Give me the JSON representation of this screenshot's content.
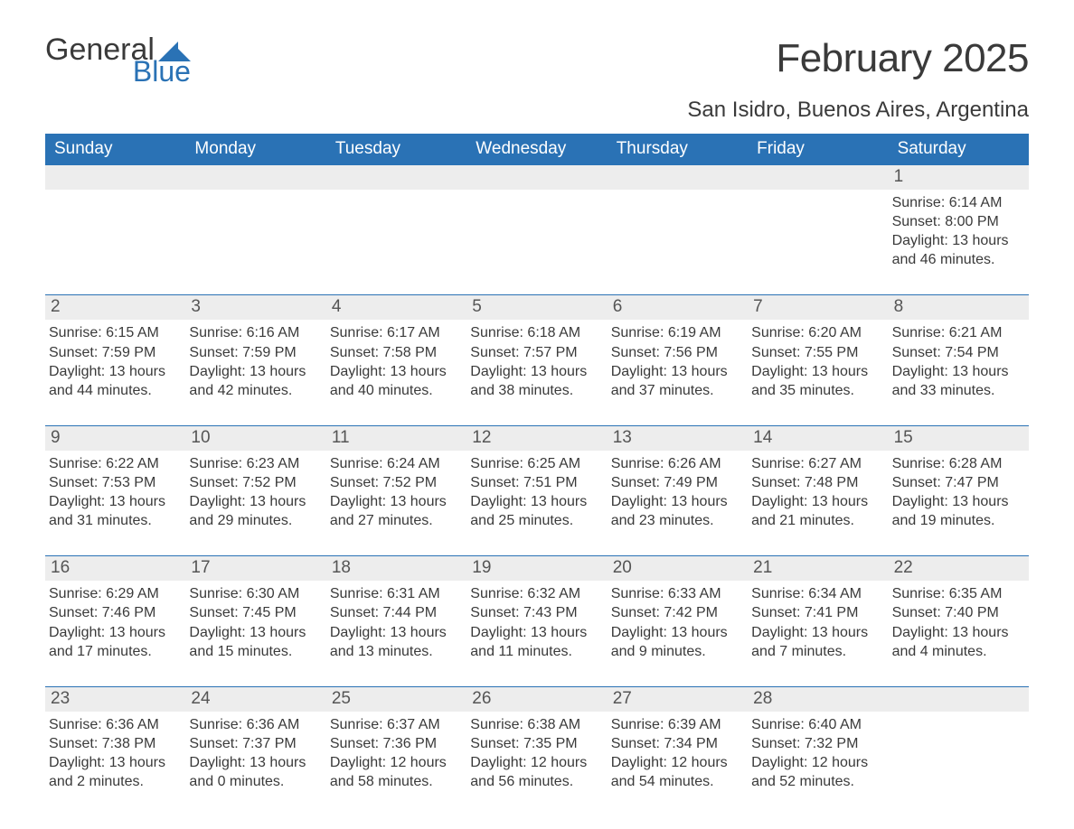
{
  "logo": {
    "word1": "General",
    "word2": "Blue",
    "mark_color": "#2a72b5",
    "text_color": "#3a3a3a"
  },
  "title": "February 2025",
  "location": "San Isidro, Buenos Aires, Argentina",
  "colors": {
    "header_bg": "#2a72b5",
    "header_text": "#ffffff",
    "daynum_bg": "#ededed",
    "daynum_text": "#555555",
    "rule": "#2a72b5",
    "body_text": "#3a3a3a",
    "page_bg": "#ffffff"
  },
  "daynames": [
    "Sunday",
    "Monday",
    "Tuesday",
    "Wednesday",
    "Thursday",
    "Friday",
    "Saturday"
  ],
  "weeks": [
    [
      {
        "empty": true
      },
      {
        "empty": true
      },
      {
        "empty": true
      },
      {
        "empty": true
      },
      {
        "empty": true
      },
      {
        "empty": true
      },
      {
        "n": "1",
        "sunrise": "Sunrise: 6:14 AM",
        "sunset": "Sunset: 8:00 PM",
        "daylight1": "Daylight: 13 hours",
        "daylight2": "and 46 minutes."
      }
    ],
    [
      {
        "n": "2",
        "sunrise": "Sunrise: 6:15 AM",
        "sunset": "Sunset: 7:59 PM",
        "daylight1": "Daylight: 13 hours",
        "daylight2": "and 44 minutes."
      },
      {
        "n": "3",
        "sunrise": "Sunrise: 6:16 AM",
        "sunset": "Sunset: 7:59 PM",
        "daylight1": "Daylight: 13 hours",
        "daylight2": "and 42 minutes."
      },
      {
        "n": "4",
        "sunrise": "Sunrise: 6:17 AM",
        "sunset": "Sunset: 7:58 PM",
        "daylight1": "Daylight: 13 hours",
        "daylight2": "and 40 minutes."
      },
      {
        "n": "5",
        "sunrise": "Sunrise: 6:18 AM",
        "sunset": "Sunset: 7:57 PM",
        "daylight1": "Daylight: 13 hours",
        "daylight2": "and 38 minutes."
      },
      {
        "n": "6",
        "sunrise": "Sunrise: 6:19 AM",
        "sunset": "Sunset: 7:56 PM",
        "daylight1": "Daylight: 13 hours",
        "daylight2": "and 37 minutes."
      },
      {
        "n": "7",
        "sunrise": "Sunrise: 6:20 AM",
        "sunset": "Sunset: 7:55 PM",
        "daylight1": "Daylight: 13 hours",
        "daylight2": "and 35 minutes."
      },
      {
        "n": "8",
        "sunrise": "Sunrise: 6:21 AM",
        "sunset": "Sunset: 7:54 PM",
        "daylight1": "Daylight: 13 hours",
        "daylight2": "and 33 minutes."
      }
    ],
    [
      {
        "n": "9",
        "sunrise": "Sunrise: 6:22 AM",
        "sunset": "Sunset: 7:53 PM",
        "daylight1": "Daylight: 13 hours",
        "daylight2": "and 31 minutes."
      },
      {
        "n": "10",
        "sunrise": "Sunrise: 6:23 AM",
        "sunset": "Sunset: 7:52 PM",
        "daylight1": "Daylight: 13 hours",
        "daylight2": "and 29 minutes."
      },
      {
        "n": "11",
        "sunrise": "Sunrise: 6:24 AM",
        "sunset": "Sunset: 7:52 PM",
        "daylight1": "Daylight: 13 hours",
        "daylight2": "and 27 minutes."
      },
      {
        "n": "12",
        "sunrise": "Sunrise: 6:25 AM",
        "sunset": "Sunset: 7:51 PM",
        "daylight1": "Daylight: 13 hours",
        "daylight2": "and 25 minutes."
      },
      {
        "n": "13",
        "sunrise": "Sunrise: 6:26 AM",
        "sunset": "Sunset: 7:49 PM",
        "daylight1": "Daylight: 13 hours",
        "daylight2": "and 23 minutes."
      },
      {
        "n": "14",
        "sunrise": "Sunrise: 6:27 AM",
        "sunset": "Sunset: 7:48 PM",
        "daylight1": "Daylight: 13 hours",
        "daylight2": "and 21 minutes."
      },
      {
        "n": "15",
        "sunrise": "Sunrise: 6:28 AM",
        "sunset": "Sunset: 7:47 PM",
        "daylight1": "Daylight: 13 hours",
        "daylight2": "and 19 minutes."
      }
    ],
    [
      {
        "n": "16",
        "sunrise": "Sunrise: 6:29 AM",
        "sunset": "Sunset: 7:46 PM",
        "daylight1": "Daylight: 13 hours",
        "daylight2": "and 17 minutes."
      },
      {
        "n": "17",
        "sunrise": "Sunrise: 6:30 AM",
        "sunset": "Sunset: 7:45 PM",
        "daylight1": "Daylight: 13 hours",
        "daylight2": "and 15 minutes."
      },
      {
        "n": "18",
        "sunrise": "Sunrise: 6:31 AM",
        "sunset": "Sunset: 7:44 PM",
        "daylight1": "Daylight: 13 hours",
        "daylight2": "and 13 minutes."
      },
      {
        "n": "19",
        "sunrise": "Sunrise: 6:32 AM",
        "sunset": "Sunset: 7:43 PM",
        "daylight1": "Daylight: 13 hours",
        "daylight2": "and 11 minutes."
      },
      {
        "n": "20",
        "sunrise": "Sunrise: 6:33 AM",
        "sunset": "Sunset: 7:42 PM",
        "daylight1": "Daylight: 13 hours",
        "daylight2": "and 9 minutes."
      },
      {
        "n": "21",
        "sunrise": "Sunrise: 6:34 AM",
        "sunset": "Sunset: 7:41 PM",
        "daylight1": "Daylight: 13 hours",
        "daylight2": "and 7 minutes."
      },
      {
        "n": "22",
        "sunrise": "Sunrise: 6:35 AM",
        "sunset": "Sunset: 7:40 PM",
        "daylight1": "Daylight: 13 hours",
        "daylight2": "and 4 minutes."
      }
    ],
    [
      {
        "n": "23",
        "sunrise": "Sunrise: 6:36 AM",
        "sunset": "Sunset: 7:38 PM",
        "daylight1": "Daylight: 13 hours",
        "daylight2": "and 2 minutes."
      },
      {
        "n": "24",
        "sunrise": "Sunrise: 6:36 AM",
        "sunset": "Sunset: 7:37 PM",
        "daylight1": "Daylight: 13 hours",
        "daylight2": "and 0 minutes."
      },
      {
        "n": "25",
        "sunrise": "Sunrise: 6:37 AM",
        "sunset": "Sunset: 7:36 PM",
        "daylight1": "Daylight: 12 hours",
        "daylight2": "and 58 minutes."
      },
      {
        "n": "26",
        "sunrise": "Sunrise: 6:38 AM",
        "sunset": "Sunset: 7:35 PM",
        "daylight1": "Daylight: 12 hours",
        "daylight2": "and 56 minutes."
      },
      {
        "n": "27",
        "sunrise": "Sunrise: 6:39 AM",
        "sunset": "Sunset: 7:34 PM",
        "daylight1": "Daylight: 12 hours",
        "daylight2": "and 54 minutes."
      },
      {
        "n": "28",
        "sunrise": "Sunrise: 6:40 AM",
        "sunset": "Sunset: 7:32 PM",
        "daylight1": "Daylight: 12 hours",
        "daylight2": "and 52 minutes."
      },
      {
        "empty": true
      }
    ]
  ]
}
